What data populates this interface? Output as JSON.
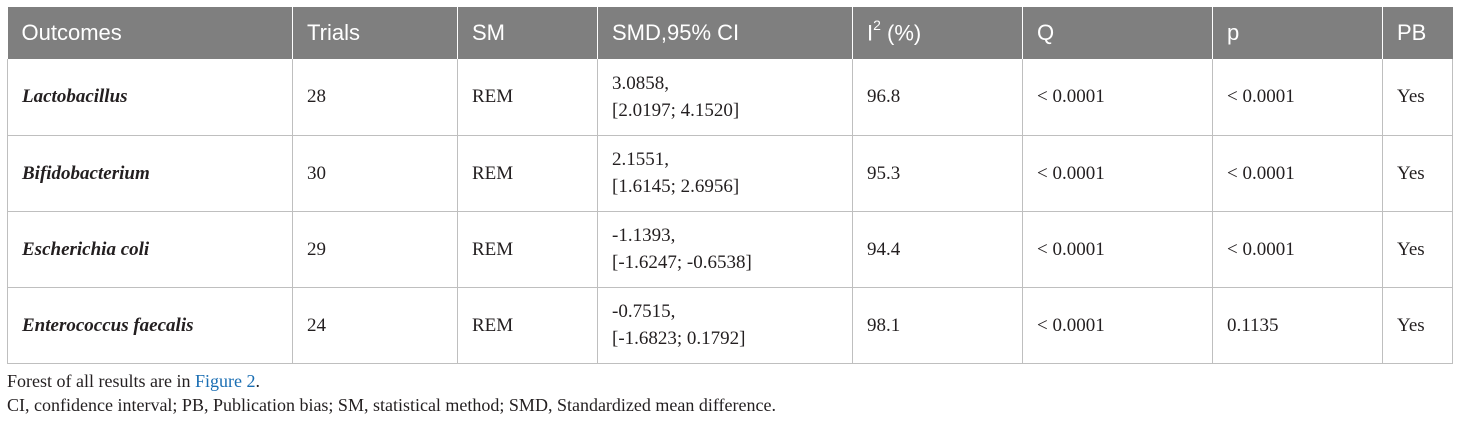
{
  "table": {
    "headers": [
      {
        "label": "Outcomes"
      },
      {
        "label": "Trials"
      },
      {
        "label": "SM"
      },
      {
        "label": "SMD,95% CI"
      },
      {
        "label": "I",
        "sup": "2",
        "suffix": " (%)"
      },
      {
        "label": "Q"
      },
      {
        "label": "p"
      },
      {
        "label": "PB"
      }
    ],
    "rows": [
      {
        "outcome": "Lactobacillus",
        "trials": "28",
        "sm": "REM",
        "smd_line1": "3.0858,",
        "smd_line2": "[2.0197; 4.1520]",
        "i2": "96.8",
        "q": "< 0.0001",
        "p": "< 0.0001",
        "pb": "Yes"
      },
      {
        "outcome": "Bifidobacterium",
        "trials": "30",
        "sm": "REM",
        "smd_line1": "2.1551,",
        "smd_line2": "[1.6145; 2.6956]",
        "i2": "95.3",
        "q": "< 0.0001",
        "p": "< 0.0001",
        "pb": "Yes"
      },
      {
        "outcome": "Escherichia coli",
        "trials": "29",
        "sm": "REM",
        "smd_line1": "-1.1393,",
        "smd_line2": "[-1.6247; -0.6538]",
        "i2": "94.4",
        "q": "< 0.0001",
        "p": "< 0.0001",
        "pb": "Yes"
      },
      {
        "outcome": "Enterococcus faecalis",
        "trials": "24",
        "sm": "REM",
        "smd_line1": "-0.7515,",
        "smd_line2": "[-1.6823; 0.1792]",
        "i2": "98.1",
        "q": "< 0.0001",
        "p": "0.1135",
        "pb": "Yes"
      }
    ]
  },
  "footnotes": {
    "line1_prefix": "Forest of all results are in ",
    "line1_link": "Figure 2",
    "line1_suffix": ".",
    "line2": "CI, confidence interval; PB, Publication bias; SM, statistical method; SMD, Standardized mean difference."
  },
  "colors": {
    "header_bg": "#7f7f7f",
    "header_text": "#ffffff",
    "link": "#1a6eb3"
  }
}
